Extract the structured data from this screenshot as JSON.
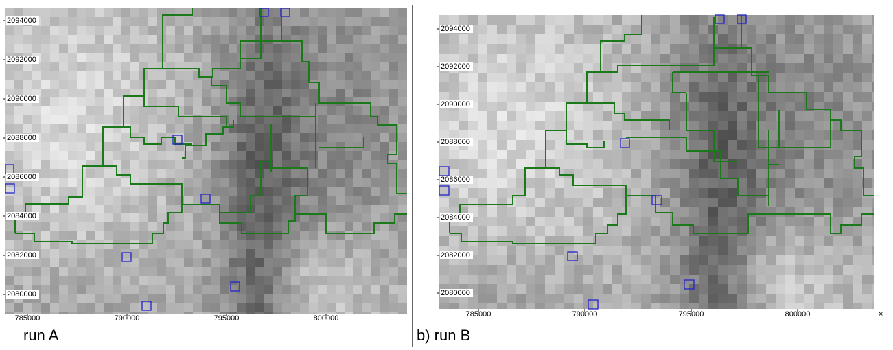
{
  "panels": [
    {
      "caption": "run A",
      "xticks": [
        785000,
        790000,
        795000,
        800000
      ],
      "yticks": [
        2094000,
        2092000,
        2090000,
        2088000,
        2086000,
        2084000,
        2082000,
        2080000
      ]
    },
    {
      "caption": "b) run B",
      "xticks": [
        785000,
        790000,
        795000,
        800000
      ],
      "yticks": [
        2094000,
        2092000,
        2090000,
        2088000,
        2086000,
        2084000,
        2082000,
        2080000
      ],
      "corner_mark": "×"
    }
  ]
}
